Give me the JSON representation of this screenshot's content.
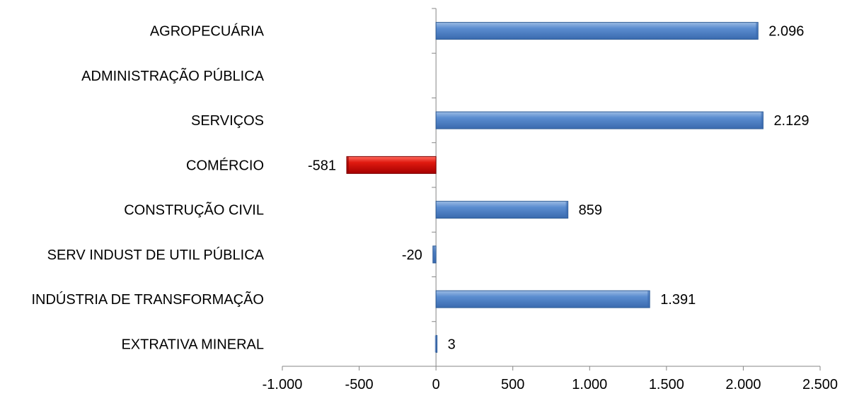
{
  "chart_data": {
    "type": "bar",
    "orientation": "horizontal",
    "categories": [
      "AGROPECUÁRIA",
      "ADMINISTRAÇÃO PÚBLICA",
      "SERVIÇOS",
      "COMÉRCIO",
      "CONSTRUÇÃO CIVIL",
      "SERV INDUST DE UTIL PÚBLICA",
      "INDÚSTRIA DE TRANSFORMAÇÃO",
      "EXTRATIVA MINERAL"
    ],
    "values": [
      2096,
      null,
      2129,
      -581,
      859,
      -20,
      1391,
      3
    ],
    "data_labels": [
      "2.096",
      "",
      "2.129",
      "-581",
      "859",
      "-20",
      "1.391",
      "3"
    ],
    "bar_colors": [
      "#4f81bd",
      null,
      "#4f81bd",
      "#c00000",
      "#4f81bd",
      "#4f81bd",
      "#4f81bd",
      "#4f81bd"
    ],
    "xlim": [
      -1000,
      2500
    ],
    "x_ticks": [
      -1000,
      -500,
      0,
      500,
      1000,
      1500,
      2000,
      2500
    ],
    "x_tick_labels": [
      "-1.000",
      "-500",
      "0",
      "500",
      "1.000",
      "1.500",
      "2.000",
      "2.500"
    ],
    "title": "",
    "xlabel": "",
    "ylabel": "",
    "grid": false,
    "legend": "none"
  }
}
